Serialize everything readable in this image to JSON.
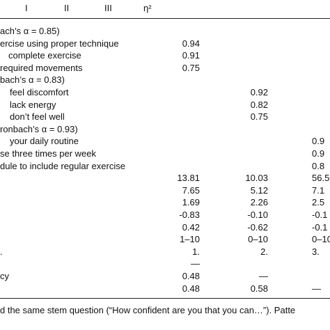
{
  "header": {
    "columns": [
      "I",
      "II",
      "III",
      "η²"
    ]
  },
  "rows": [
    {
      "label": "ach’s α = 0.85)"
    },
    {
      "label": "ercise using proper technique",
      "col1": "0.94"
    },
    {
      "label": "complete exercise",
      "col1": "0.91"
    },
    {
      "label": "required movements",
      "col1": "0.75"
    },
    {
      "label": "bach’s α = 0.83)"
    },
    {
      "label": "feel discomfort",
      "col2": "0.92"
    },
    {
      "label": "lack energy",
      "col2": "0.82"
    },
    {
      "label": "don’t feel well",
      "col2": "0.75"
    },
    {
      "label": "ronbach’s α = 0.93)"
    },
    {
      "label": "your daily routine",
      "col3": "0.9"
    },
    {
      "label": "se three times per week",
      "col3": "0.9"
    },
    {
      "label": "dule to include regular exercise",
      "col3": "0.8"
    },
    {
      "col1": "13.81",
      "col2": "10.03",
      "col3": "56.5"
    },
    {
      "col1": "7.65",
      "col2": "5.12",
      "col3": "7.1"
    },
    {
      "col1": "1.69",
      "col2": "2.26",
      "col3": "2.5"
    },
    {
      "col1": "-0.83",
      "col2": "-0.10",
      "col3": "-0.1"
    },
    {
      "col1": "0.42",
      "col2": "-0.62",
      "col3": "-0.1"
    },
    {
      "col1": "1–10",
      "col2": "0–10",
      "col3": "0–10"
    },
    {
      "label": ".",
      "col1": "1.",
      "col2": "2.",
      "col3": "3."
    },
    {
      "col1": "—"
    },
    {
      "label": "cy",
      "col1": "0.48",
      "col2": "—"
    },
    {
      "col1": "0.48",
      "col2": "0.58",
      "col3": "—"
    }
  ],
  "footnote": "d the same stem question (“How confident are you that you can…”). Patte"
}
